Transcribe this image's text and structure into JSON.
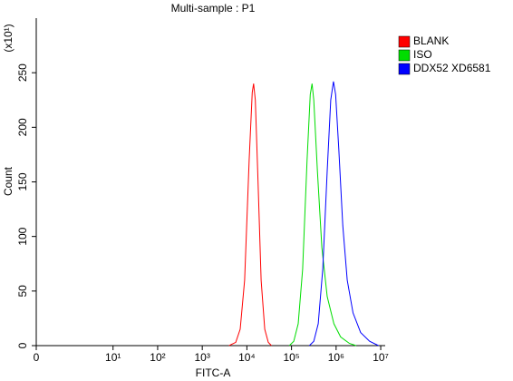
{
  "chart_data": {
    "type": "line",
    "title": "Multi-sample : P1",
    "x_label": "FITC-A",
    "y_label": "Count",
    "y_multiplier": "(x10¹)",
    "x_scale": "log",
    "xlim": [
      0.19,
      12600000
    ],
    "xticks": [
      {
        "value": 0.19,
        "label": "0"
      },
      {
        "value": 10,
        "label": "10¹"
      },
      {
        "value": 100,
        "label": "10²"
      },
      {
        "value": 1000,
        "label": "10³"
      },
      {
        "value": 10000,
        "label": "10⁴"
      },
      {
        "value": 100000,
        "label": "10⁵"
      },
      {
        "value": 1000000,
        "label": "10⁶"
      },
      {
        "value": 10000000,
        "label": "10⁷"
      }
    ],
    "ylim": [
      0,
      300
    ],
    "yticks": [
      0,
      50,
      100,
      150,
      200,
      250
    ],
    "grid": false,
    "legend": "right",
    "series": [
      {
        "name": "BLANK",
        "color": "#ff0000",
        "x": [
          3981,
          5623,
          7079,
          8913,
          11220,
          13183,
          14125,
          15488,
          17783,
          20893,
          25119,
          30200,
          35481
        ],
        "values": [
          0,
          3,
          15,
          60,
          170,
          232,
          240,
          225,
          150,
          60,
          15,
          3,
          0
        ]
      },
      {
        "name": "ISO",
        "color": "#00dd00",
        "x": [
          89125,
          112202,
          141254,
          177828,
          223872,
          263027,
          288403,
          316228,
          380189,
          478630,
          630957,
          891251,
          1258925,
          1995262,
          2818383
        ],
        "values": [
          0,
          4,
          20,
          70,
          170,
          230,
          240,
          225,
          160,
          90,
          45,
          20,
          8,
          2,
          0
        ]
      },
      {
        "name": "DDX52 XD6581",
        "color": "#0000ff",
        "x": [
          251189,
          316228,
          398107,
          501187,
          630957,
          758578,
          870964,
          977237,
          1148154,
          1412538,
          1778279,
          2398833,
          3548134,
          5623413,
          8912509
        ],
        "values": [
          0,
          4,
          20,
          70,
          160,
          225,
          242,
          230,
          180,
          110,
          60,
          30,
          12,
          4,
          0
        ]
      }
    ]
  }
}
